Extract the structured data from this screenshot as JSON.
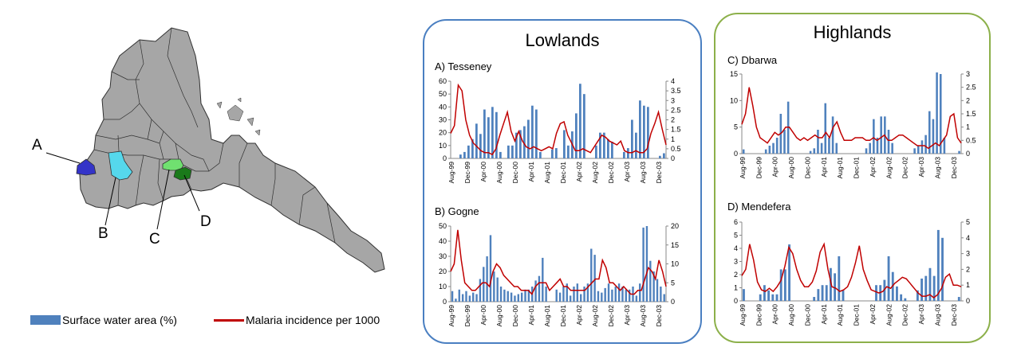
{
  "map": {
    "labels": [
      "A",
      "B",
      "C",
      "D"
    ],
    "colors": {
      "land": "#a6a6a6",
      "A": "#3434c8",
      "B": "#55d8ec",
      "C": "#70e070",
      "D": "#1a7a1a"
    }
  },
  "legend": {
    "water_label": "Surface water area (%)",
    "malaria_label": "Malaria incidence per 1000",
    "water_color": "#4f81bd",
    "malaria_color": "#c00000"
  },
  "panels": {
    "lowlands_title": "Lowlands",
    "highlands_title": "Highlands",
    "lowlands_border": "#4a7fc1",
    "highlands_border": "#8cb04a"
  },
  "chart_data": [
    {
      "type": "bar+line",
      "title": "A) Tesseney",
      "x_ticks": [
        "Aug-99",
        "Dec-99",
        "Apr-00",
        "Aug-00",
        "Dec-00",
        "Apr-01",
        "Aug-01",
        "Dec-01",
        "Apr-02",
        "Aug-02",
        "Dec-02",
        "Apr-03",
        "Aug-03",
        "Dec-03"
      ],
      "ylim": [
        0,
        60
      ],
      "y_ticks": [
        0,
        10,
        20,
        30,
        40,
        50,
        60
      ],
      "y2lim": [
        0,
        4
      ],
      "y2_ticks": [
        "0",
        "0.5",
        "1",
        "1.5",
        "2",
        "2.5",
        "3",
        "3.5",
        "4"
      ],
      "series": [
        {
          "name": "Surface water area (%)",
          "axis": "left",
          "kind": "bar",
          "values": [
            0,
            0,
            3,
            5,
            10,
            15,
            27,
            19,
            38,
            32,
            40,
            36,
            5,
            0,
            10,
            10,
            20,
            22,
            25,
            30,
            41,
            38,
            5,
            0,
            0,
            7,
            8,
            0,
            22,
            10,
            21,
            35,
            58,
            50,
            0,
            0,
            10,
            20,
            20,
            15,
            13,
            0,
            0,
            5,
            8,
            30,
            20,
            45,
            41,
            40,
            0,
            0,
            2,
            4
          ]
        },
        {
          "name": "Malaria incidence per 1000",
          "axis": "right",
          "kind": "line",
          "values": [
            1.3,
            1.7,
            3.8,
            3.5,
            2,
            1.2,
            0.8,
            0.6,
            0.4,
            0.3,
            0.3,
            0.2,
            0.5,
            1.2,
            1.8,
            2.4,
            1.4,
            0.9,
            1.4,
            0.9,
            0.6,
            0.5,
            0.6,
            0.5,
            0.4,
            0.5,
            0.6,
            0.5,
            1.3,
            1.8,
            1.9,
            1.2,
            0.8,
            0.4,
            0.4,
            0.5,
            0.4,
            0.3,
            0.6,
            0.9,
            1.2,
            1.1,
            0.9,
            0.8,
            0.7,
            0.9,
            0.4,
            0.3,
            0.3,
            0.4,
            0.3,
            0.3,
            0.5,
            1.3,
            1.8,
            2.4,
            1.5,
            0.7
          ]
        }
      ]
    },
    {
      "type": "bar+line",
      "title": "B) Gogne",
      "x_ticks": [
        "Aug-99",
        "Dec-99",
        "Apr-00",
        "Aug-00",
        "Dec-00",
        "Apr-01",
        "Aug-01",
        "Dec-01",
        "Apr-02",
        "Aug-02",
        "Dec-02",
        "Apr-03",
        "Aug-03",
        "Dec-03"
      ],
      "ylim": [
        0,
        50
      ],
      "y_ticks": [
        0,
        10,
        20,
        30,
        40,
        50
      ],
      "y2lim": [
        0,
        20
      ],
      "y2_ticks": [
        "0",
        "5",
        "10",
        "15",
        "20"
      ],
      "series": [
        {
          "name": "Surface water area (%)",
          "axis": "left",
          "kind": "bar",
          "values": [
            7,
            2,
            8,
            5,
            7,
            4,
            6,
            5,
            15,
            23,
            30,
            44,
            20,
            16,
            10,
            8,
            7,
            6,
            4,
            5,
            6,
            8,
            8,
            10,
            14,
            17,
            29,
            10,
            0,
            0,
            8,
            6,
            10,
            12,
            4,
            10,
            12,
            5,
            10,
            12,
            35,
            31,
            7,
            6,
            9,
            12,
            8,
            10,
            12,
            10,
            8,
            8,
            10,
            4,
            12,
            49,
            50,
            27,
            20,
            15,
            10,
            5
          ]
        },
        {
          "name": "Malaria incidence per 1000",
          "axis": "right",
          "kind": "line",
          "values": [
            8,
            10,
            19,
            11,
            5,
            4,
            3,
            3,
            4,
            5,
            5,
            4,
            8,
            10,
            9,
            7,
            6,
            5,
            4,
            4,
            3,
            3,
            3,
            2,
            4,
            5,
            5,
            5,
            3,
            4,
            5,
            6,
            4,
            4,
            3,
            3,
            3,
            3,
            3,
            4,
            5,
            6,
            6,
            11,
            9,
            5,
            5,
            4,
            3,
            4,
            3,
            2,
            2,
            3,
            3,
            6,
            9,
            8,
            6,
            11,
            8,
            4
          ]
        }
      ]
    },
    {
      "type": "bar+line",
      "title": "C) Dbarwa",
      "x_ticks": [
        "Aug-99",
        "Dec-99",
        "Apr-00",
        "Aug-00",
        "Dec-00",
        "Apr-01",
        "Aug-01",
        "Dec-01",
        "Apr-02",
        "Aug-02",
        "Dec-02",
        "Apr-03",
        "Aug-03",
        "Dec-03"
      ],
      "ylim": [
        0,
        15
      ],
      "y_ticks": [
        0,
        5,
        10,
        15
      ],
      "y2lim": [
        0,
        3
      ],
      "y2_ticks": [
        "0",
        "0.5",
        "1",
        "1.5",
        "2",
        "2.5",
        "3"
      ],
      "series": [
        {
          "name": "Surface water area (%)",
          "axis": "left",
          "kind": "bar",
          "values": [
            0.8,
            0,
            0,
            0,
            0,
            0,
            0.8,
            1.5,
            2,
            3,
            7.5,
            4.5,
            9.8,
            0,
            0,
            0,
            0,
            0,
            0.5,
            1,
            4.5,
            2,
            9.5,
            3,
            7,
            2,
            0,
            0,
            0,
            0,
            0,
            0,
            0,
            1,
            2,
            6.5,
            3,
            7,
            7,
            4.5,
            2,
            0,
            0,
            0,
            0,
            0,
            1,
            1.5,
            2.5,
            3.5,
            8,
            6.5,
            15.3,
            15,
            3,
            0,
            0,
            0,
            0.5
          ]
        },
        {
          "name": "Malaria incidence per 1000",
          "axis": "right",
          "kind": "line",
          "values": [
            1.1,
            1.5,
            2.5,
            1.8,
            1,
            0.6,
            0.5,
            0.4,
            0.6,
            0.8,
            0.7,
            0.8,
            1,
            1,
            0.8,
            0.6,
            0.5,
            0.6,
            0.5,
            0.6,
            0.7,
            0.6,
            0.6,
            0.8,
            0.6,
            1,
            1.2,
            0.8,
            0.5,
            0.5,
            0.5,
            0.6,
            0.6,
            0.6,
            0.5,
            0.5,
            0.6,
            0.5,
            0.6,
            0.7,
            0.5,
            0.5,
            0.6,
            0.7,
            0.7,
            0.6,
            0.5,
            0.4,
            0.3,
            0.3,
            0.3,
            0.2,
            0.3,
            0.4,
            0.3,
            0.5,
            0.7,
            1.4,
            1.5,
            0.6,
            0.4
          ]
        }
      ]
    },
    {
      "type": "bar+line",
      "title": "D) Mendefera",
      "x_ticks": [
        "Aug-99",
        "Dec-99",
        "Apr-00",
        "Aug-00",
        "Dec-00",
        "Apr-01",
        "Aug-01",
        "Dec-01",
        "Apr-02",
        "Aug-02",
        "Dec-02",
        "Apr-03",
        "Aug-03",
        "Dec-03"
      ],
      "ylim": [
        0,
        6
      ],
      "y_ticks": [
        0,
        1,
        2,
        3,
        4,
        5,
        6
      ],
      "y2lim": [
        0,
        5
      ],
      "y2_ticks": [
        "0",
        "1",
        "2",
        "3",
        "4",
        "5"
      ],
      "series": [
        {
          "name": "Surface water area (%)",
          "axis": "left",
          "kind": "bar",
          "values": [
            0.9,
            0,
            0,
            0,
            0.5,
            1.2,
            0.8,
            0.5,
            0.5,
            2.4,
            2.4,
            4.3,
            0,
            0,
            0,
            0,
            0,
            0.3,
            0.9,
            1.2,
            1.2,
            2.5,
            2.1,
            3.4,
            0.8,
            0,
            0,
            0,
            0,
            0,
            0,
            0,
            1.2,
            1.2,
            1.6,
            3.4,
            2.2,
            1.1,
            0.5,
            0.2,
            0,
            0,
            0.8,
            1.7,
            1.9,
            2.5,
            1.9,
            5.4,
            4.8,
            0,
            0,
            0,
            0.3
          ]
        },
        {
          "name": "Malaria incidence per 1000",
          "axis": "right",
          "kind": "line",
          "values": [
            1.6,
            2,
            3.6,
            2.6,
            1.2,
            0.7,
            0.6,
            0.8,
            0.6,
            0.9,
            1.3,
            2.2,
            3.4,
            3,
            2,
            1.3,
            0.9,
            0.9,
            1.2,
            1.9,
            3.1,
            3.6,
            2,
            0.9,
            0.8,
            0.6,
            0.7,
            0.9,
            1.5,
            2.4,
            3.5,
            2,
            1.3,
            0.7,
            0.6,
            0.5,
            0.6,
            0.9,
            0.8,
            1.1,
            1.3,
            1.5,
            1.4,
            1.1,
            0.8,
            0.5,
            0.3,
            0.3,
            0.4,
            0.2,
            0.4,
            0.8,
            1.5,
            1.7,
            1,
            1,
            0.9
          ]
        }
      ]
    }
  ]
}
